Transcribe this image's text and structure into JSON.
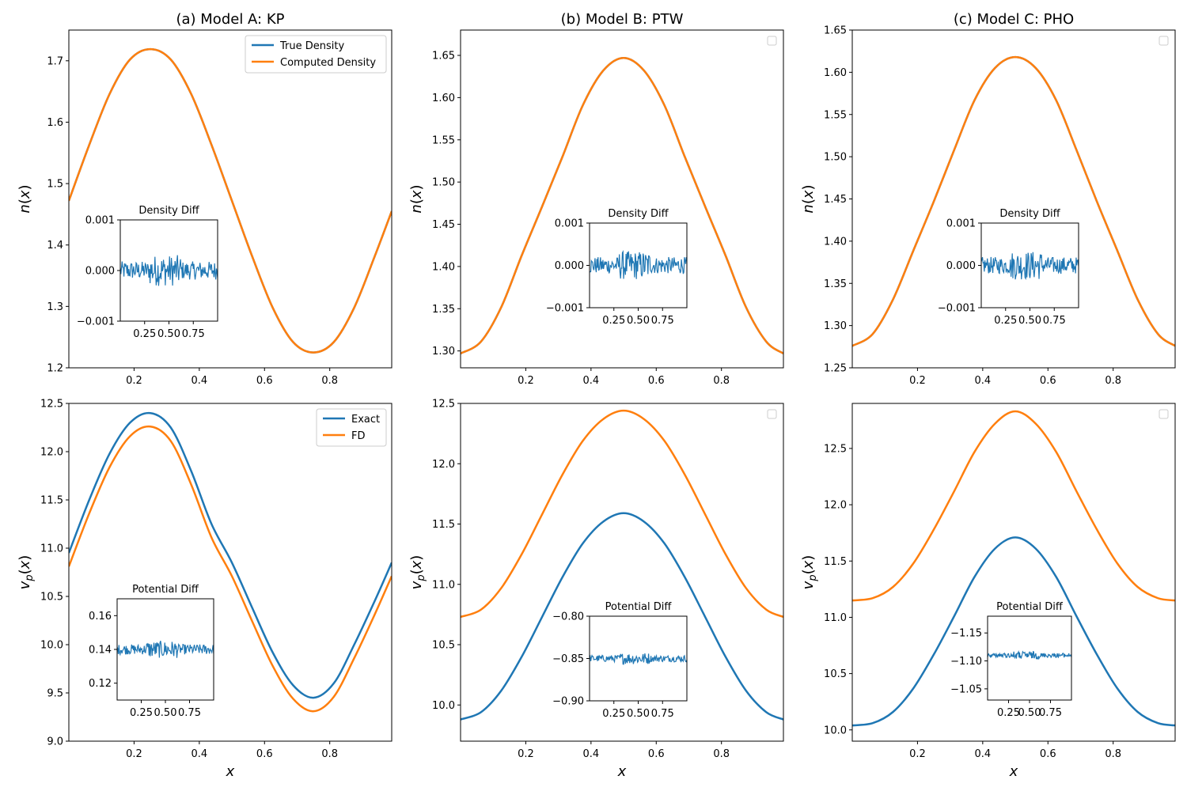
{
  "colors": {
    "blue": "#1f77b4",
    "orange": "#ff7f0e"
  },
  "chart_data": [
    {
      "id": "a_top",
      "type": "line",
      "title": "(a) Model A: KP",
      "xlabel": "",
      "ylabel": "n(x)",
      "xlim": [
        0.0,
        0.99
      ],
      "ylim": [
        1.2,
        1.75
      ],
      "xticks": [
        0.2,
        0.4,
        0.6,
        0.8
      ],
      "yticks": [
        1.2,
        1.3,
        1.4,
        1.5,
        1.6,
        1.7
      ],
      "x": [
        0.0,
        0.0625,
        0.125,
        0.1875,
        0.25,
        0.3125,
        0.375,
        0.4375,
        0.5,
        0.5625,
        0.625,
        0.6875,
        0.75,
        0.8125,
        0.875,
        0.9375,
        0.99
      ],
      "series": [
        {
          "name": "True Density",
          "color": "#1f77b4",
          "values": [
            1.472,
            1.563,
            1.646,
            1.702,
            1.719,
            1.702,
            1.646,
            1.563,
            1.472,
            1.381,
            1.298,
            1.242,
            1.225,
            1.242,
            1.298,
            1.381,
            1.455
          ]
        },
        {
          "name": "Computed Density",
          "color": "#ff7f0e",
          "values": [
            1.472,
            1.563,
            1.646,
            1.702,
            1.719,
            1.702,
            1.646,
            1.563,
            1.472,
            1.381,
            1.298,
            1.242,
            1.225,
            1.242,
            1.298,
            1.381,
            1.455
          ]
        }
      ],
      "legend": "top-right",
      "inset": {
        "title": "Density Diff",
        "xlim": [
          0.0,
          1.0
        ],
        "ylim": [
          -0.001,
          0.001
        ],
        "yticks": [
          "0.001",
          "0.000",
          "−0.001"
        ],
        "xticks": [
          "0.25",
          "0.50",
          "0.75"
        ],
        "center": 0.0,
        "noise": 0.00018
      }
    },
    {
      "id": "b_top",
      "type": "line",
      "title": "(b) Model B: PTW",
      "xlabel": "",
      "ylabel": "n(x)",
      "xlim": [
        0.0,
        0.99
      ],
      "ylim": [
        1.28,
        1.68
      ],
      "xticks": [
        0.2,
        0.4,
        0.6,
        0.8
      ],
      "yticks": [
        1.3,
        1.35,
        1.4,
        1.45,
        1.5,
        1.55,
        1.6,
        1.65
      ],
      "x": [
        0.0,
        0.0625,
        0.125,
        0.1875,
        0.25,
        0.3125,
        0.375,
        0.4375,
        0.5,
        0.5625,
        0.625,
        0.6875,
        0.75,
        0.8125,
        0.875,
        0.9375,
        0.99
      ],
      "series": [
        {
          "name": "True Density",
          "color": "#1f77b4",
          "values": [
            1.297,
            1.311,
            1.352,
            1.413,
            1.471,
            1.53,
            1.591,
            1.632,
            1.647,
            1.632,
            1.591,
            1.53,
            1.471,
            1.413,
            1.352,
            1.311,
            1.297
          ]
        },
        {
          "name": "Computed Density",
          "color": "#ff7f0e",
          "values": [
            1.297,
            1.311,
            1.352,
            1.413,
            1.471,
            1.53,
            1.591,
            1.632,
            1.647,
            1.632,
            1.591,
            1.53,
            1.471,
            1.413,
            1.352,
            1.311,
            1.297
          ]
        }
      ],
      "legend": "top-right (empty)",
      "inset": {
        "title": "Density Diff",
        "xlim": [
          0.0,
          1.0
        ],
        "ylim": [
          -0.001,
          0.001
        ],
        "yticks": [
          "0.001",
          "0.000",
          "−0.001"
        ],
        "xticks": [
          "0.25",
          "0.50",
          "0.75"
        ],
        "center": 0.0,
        "noise": 0.0002
      }
    },
    {
      "id": "c_top",
      "type": "line",
      "title": "(c) Model C: PHO",
      "xlabel": "",
      "ylabel": "n(x)",
      "xlim": [
        0.0,
        0.99
      ],
      "ylim": [
        1.25,
        1.65
      ],
      "xticks": [
        0.2,
        0.4,
        0.6,
        0.8
      ],
      "yticks": [
        1.25,
        1.3,
        1.35,
        1.4,
        1.45,
        1.5,
        1.55,
        1.6,
        1.65
      ],
      "x": [
        0.0,
        0.0625,
        0.125,
        0.1875,
        0.25,
        0.3125,
        0.375,
        0.4375,
        0.5,
        0.5625,
        0.625,
        0.6875,
        0.75,
        0.8125,
        0.875,
        0.9375,
        0.99
      ],
      "series": [
        {
          "name": "True Density",
          "color": "#1f77b4",
          "values": [
            1.276,
            1.29,
            1.331,
            1.389,
            1.447,
            1.508,
            1.567,
            1.605,
            1.618,
            1.605,
            1.567,
            1.508,
            1.447,
            1.389,
            1.331,
            1.29,
            1.276
          ]
        },
        {
          "name": "Computed Density",
          "color": "#ff7f0e",
          "values": [
            1.276,
            1.29,
            1.331,
            1.389,
            1.447,
            1.508,
            1.567,
            1.605,
            1.618,
            1.605,
            1.567,
            1.508,
            1.447,
            1.389,
            1.331,
            1.29,
            1.276
          ]
        }
      ],
      "legend": "top-right (empty)",
      "inset": {
        "title": "Density Diff",
        "xlim": [
          0.0,
          1.0
        ],
        "ylim": [
          -0.001,
          0.001
        ],
        "yticks": [
          "0.001",
          "0.000",
          "−0.001"
        ],
        "xticks": [
          "0.25",
          "0.50",
          "0.75"
        ],
        "center": 0.0,
        "noise": 0.0002
      }
    },
    {
      "id": "a_bottom",
      "type": "line",
      "title": "",
      "xlabel": "x",
      "ylabel": "v_p(x)",
      "xlim": [
        0.0,
        0.99
      ],
      "ylim": [
        9.0,
        12.5
      ],
      "xticks": [
        0.2,
        0.4,
        0.6,
        0.8
      ],
      "yticks": [
        9.0,
        9.5,
        10.0,
        10.5,
        11.0,
        11.5,
        12.0,
        12.5
      ],
      "x": [
        0.0,
        0.0625,
        0.125,
        0.1875,
        0.25,
        0.3125,
        0.375,
        0.4375,
        0.5,
        0.5625,
        0.625,
        0.6875,
        0.75,
        0.8125,
        0.875,
        0.9375,
        0.99
      ],
      "series": [
        {
          "name": "Exact",
          "color": "#1f77b4",
          "values": [
            10.95,
            11.5,
            11.98,
            12.3,
            12.4,
            12.25,
            11.8,
            11.25,
            10.85,
            10.38,
            9.92,
            9.58,
            9.45,
            9.6,
            10.0,
            10.45,
            10.85
          ]
        },
        {
          "name": "FD",
          "color": "#ff7f0e",
          "values": [
            10.81,
            11.36,
            11.84,
            12.16,
            12.26,
            12.11,
            11.66,
            11.11,
            10.71,
            10.24,
            9.78,
            9.44,
            9.31,
            9.46,
            9.86,
            10.31,
            10.71
          ]
        }
      ],
      "legend": "top-right",
      "inset": {
        "title": "Potential Diff",
        "xlim": [
          0.0,
          1.0
        ],
        "ylim": [
          0.11,
          0.17
        ],
        "yticks": [
          "0.16",
          "0.14",
          "0.12"
        ],
        "ytick_values": [
          0.16,
          0.14,
          0.12
        ],
        "xticks": [
          "0.25",
          "0.50",
          "0.75"
        ],
        "center": 0.14,
        "noise": 0.003
      }
    },
    {
      "id": "b_bottom",
      "type": "line",
      "title": "",
      "xlabel": "x",
      "ylabel": "v_p(x)",
      "xlim": [
        0.0,
        0.99
      ],
      "ylim": [
        9.7,
        12.5
      ],
      "xticks": [
        0.2,
        0.4,
        0.6,
        0.8
      ],
      "yticks": [
        10.0,
        10.5,
        11.0,
        11.5,
        12.0,
        12.5
      ],
      "x": [
        0.0,
        0.0625,
        0.125,
        0.1875,
        0.25,
        0.3125,
        0.375,
        0.4375,
        0.5,
        0.5625,
        0.625,
        0.6875,
        0.75,
        0.8125,
        0.875,
        0.9375,
        0.99
      ],
      "series": [
        {
          "name": "Exact",
          "color": "#1f77b4",
          "values": [
            9.88,
            9.94,
            10.12,
            10.4,
            10.73,
            11.06,
            11.34,
            11.52,
            11.59,
            11.52,
            11.34,
            11.06,
            10.73,
            10.4,
            10.12,
            9.94,
            9.88
          ]
        },
        {
          "name": "FD",
          "color": "#ff7f0e",
          "values": [
            10.73,
            10.79,
            10.97,
            11.25,
            11.58,
            11.91,
            12.19,
            12.37,
            12.44,
            12.37,
            12.19,
            11.91,
            11.58,
            11.25,
            10.97,
            10.79,
            10.73
          ]
        }
      ],
      "legend": "top-right (empty)",
      "inset": {
        "title": "Potential Diff",
        "xlim": [
          0.0,
          1.0
        ],
        "ylim": [
          -0.9,
          -0.8
        ],
        "yticks": [
          "−0.80",
          "−0.85",
          "−0.90"
        ],
        "ytick_values": [
          -0.8,
          -0.85,
          -0.9
        ],
        "xticks": [
          "0.25",
          "0.50",
          "0.75"
        ],
        "center": -0.85,
        "noise": 0.004
      }
    },
    {
      "id": "c_bottom",
      "type": "line",
      "title": "",
      "xlabel": "x",
      "ylabel": "v_p(x)",
      "xlim": [
        0.0,
        0.99
      ],
      "ylim": [
        9.9,
        12.9
      ],
      "xticks": [
        0.2,
        0.4,
        0.6,
        0.8
      ],
      "yticks": [
        10.0,
        10.5,
        11.0,
        11.5,
        12.0,
        12.5
      ],
      "x": [
        0.0,
        0.0625,
        0.125,
        0.1875,
        0.25,
        0.3125,
        0.375,
        0.4375,
        0.5,
        0.5625,
        0.625,
        0.6875,
        0.75,
        0.8125,
        0.875,
        0.9375,
        0.99
      ],
      "series": [
        {
          "name": "Exact",
          "color": "#1f77b4",
          "values": [
            10.04,
            10.06,
            10.16,
            10.37,
            10.67,
            11.01,
            11.36,
            11.61,
            11.71,
            11.61,
            11.36,
            11.01,
            10.67,
            10.37,
            10.16,
            10.06,
            10.04
          ]
        },
        {
          "name": "FD",
          "color": "#ff7f0e",
          "values": [
            11.15,
            11.17,
            11.27,
            11.48,
            11.78,
            12.12,
            12.47,
            12.72,
            12.83,
            12.72,
            12.47,
            12.12,
            11.78,
            11.48,
            11.27,
            11.17,
            11.15
          ]
        }
      ],
      "legend": "top-right (empty)",
      "inset": {
        "title": "Potential Diff",
        "xlim": [
          0.0,
          1.0
        ],
        "ylim": [
          -1.18,
          -1.03
        ],
        "yticks": [
          "−1.15",
          "−1.10",
          "−1.05"
        ],
        "ytick_values": [
          -1.15,
          -1.1,
          -1.05
        ],
        "xticks": [
          "0.25",
          "0.50",
          "0.75"
        ],
        "center": -1.11,
        "noise": 0.004,
        "inverted": true
      }
    }
  ]
}
